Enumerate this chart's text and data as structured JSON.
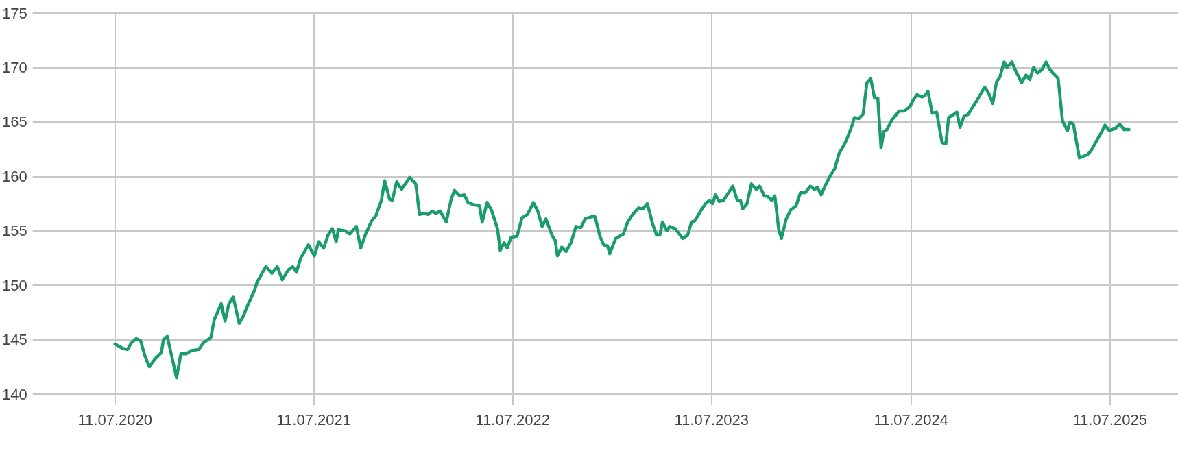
{
  "chart_data": {
    "type": "line",
    "x": [
      "2020-07-11",
      "2020-07-25",
      "2020-08-03",
      "2020-08-10",
      "2020-08-19",
      "2020-08-27",
      "2020-09-04",
      "2020-09-12",
      "2020-09-22",
      "2020-10-04",
      "2020-10-08",
      "2020-10-15",
      "2020-11-01",
      "2020-11-09",
      "2020-11-19",
      "2020-11-28",
      "2020-12-12",
      "2020-12-20",
      "2021-01-03",
      "2021-01-09",
      "2021-01-22",
      "2021-01-29",
      "2021-02-05",
      "2021-02-13",
      "2021-02-24",
      "2021-03-03",
      "2021-03-12",
      "2021-03-23",
      "2021-03-29",
      "2021-04-07",
      "2021-04-14",
      "2021-04-25",
      "2021-05-05",
      "2021-05-14",
      "2021-05-25",
      "2021-06-02",
      "2021-06-09",
      "2021-06-17",
      "2021-07-01",
      "2021-07-12",
      "2021-07-20",
      "2021-07-29",
      "2021-08-06",
      "2021-08-14",
      "2021-08-21",
      "2021-08-25",
      "2021-09-06",
      "2021-09-15",
      "2021-09-27",
      "2021-10-05",
      "2021-10-14",
      "2021-10-25",
      "2021-11-02",
      "2021-11-12",
      "2021-11-18",
      "2021-11-27",
      "2021-12-02",
      "2021-12-10",
      "2021-12-19",
      "2022-01-03",
      "2022-01-14",
      "2022-01-21",
      "2022-01-29",
      "2022-02-06",
      "2022-02-13",
      "2022-02-20",
      "2022-02-28",
      "2022-03-11",
      "2022-03-20",
      "2022-03-26",
      "2022-04-05",
      "2022-04-13",
      "2022-04-20",
      "2022-04-30",
      "2022-05-11",
      "2022-05-16",
      "2022-05-25",
      "2022-06-02",
      "2022-06-13",
      "2022-06-18",
      "2022-06-25",
      "2022-07-01",
      "2022-07-08",
      "2022-07-19",
      "2022-07-28",
      "2022-08-07",
      "2022-08-18",
      "2022-08-26",
      "2022-09-03",
      "2022-09-10",
      "2022-09-21",
      "2022-09-27",
      "2022-10-01",
      "2022-10-09",
      "2022-10-17",
      "2022-10-26",
      "2022-11-04",
      "2022-11-13",
      "2022-11-21",
      "2022-12-03",
      "2022-12-09",
      "2022-12-18",
      "2022-12-25",
      "2023-01-01",
      "2023-01-05",
      "2023-01-16",
      "2023-01-30",
      "2023-02-07",
      "2023-02-16",
      "2023-02-27",
      "2023-03-07",
      "2023-03-15",
      "2023-03-25",
      "2023-04-01",
      "2023-04-07",
      "2023-04-12",
      "2023-04-20",
      "2023-04-25",
      "2023-05-05",
      "2023-05-19",
      "2023-05-28",
      "2023-06-04",
      "2023-06-10",
      "2023-06-22",
      "2023-06-30",
      "2023-07-07",
      "2023-07-13",
      "2023-07-18",
      "2023-07-25",
      "2023-08-02",
      "2023-08-11",
      "2023-08-19",
      "2023-08-27",
      "2023-09-02",
      "2023-09-06",
      "2023-09-14",
      "2023-09-22",
      "2023-10-01",
      "2023-10-07",
      "2023-10-16",
      "2023-10-21",
      "2023-10-29",
      "2023-11-04",
      "2023-11-11",
      "2023-11-16",
      "2023-11-25",
      "2023-12-03",
      "2023-12-13",
      "2023-12-21",
      "2023-12-30",
      "2024-01-08",
      "2024-01-16",
      "2024-01-21",
      "2024-01-28",
      "2024-02-06",
      "2024-02-12",
      "2024-02-22",
      "2024-03-01",
      "2024-03-08",
      "2024-03-15",
      "2024-03-25",
      "2024-03-29",
      "2024-04-06",
      "2024-04-14",
      "2024-04-21",
      "2024-04-28",
      "2024-05-05",
      "2024-05-11",
      "2024-05-17",
      "2024-05-22",
      "2024-05-28",
      "2024-06-06",
      "2024-06-13",
      "2024-06-19",
      "2024-06-29",
      "2024-07-09",
      "2024-07-16",
      "2024-07-22",
      "2024-07-31",
      "2024-08-05",
      "2024-08-11",
      "2024-08-19",
      "2024-08-27",
      "2024-09-06",
      "2024-09-13",
      "2024-09-18",
      "2024-09-25",
      "2024-10-03",
      "2024-10-09",
      "2024-10-16",
      "2024-10-24",
      "2024-10-30",
      "2024-11-07",
      "2024-11-14",
      "2024-11-23",
      "2024-11-30",
      "2024-12-08",
      "2024-12-15",
      "2024-12-21",
      "2024-12-29",
      "2025-01-03",
      "2025-01-12",
      "2025-01-20",
      "2025-01-30",
      "2025-02-07",
      "2025-02-14",
      "2025-02-21",
      "2025-02-28",
      "2025-03-08",
      "2025-03-16",
      "2025-03-23",
      "2025-03-30",
      "2025-04-07",
      "2025-04-15",
      "2025-04-24",
      "2025-04-29",
      "2025-05-05",
      "2025-05-16",
      "2025-05-31",
      "2025-06-07",
      "2025-06-18",
      "2025-06-25",
      "2025-07-02",
      "2025-07-10",
      "2025-07-21",
      "2025-07-29",
      "2025-08-06",
      "2025-08-15"
    ],
    "series": [
      {
        "color": "#1a9c6b",
        "values": [
          144.6,
          144.2,
          144.1,
          144.7,
          145.1,
          144.9,
          143.5,
          142.5,
          143.2,
          143.8,
          145.0,
          145.3,
          141.5,
          143.7,
          143.7,
          144.0,
          144.1,
          144.7,
          145.2,
          146.8,
          148.3,
          146.7,
          148.3,
          148.9,
          146.5,
          147.1,
          148.2,
          149.4,
          150.3,
          151.1,
          151.7,
          151.1,
          151.7,
          150.5,
          151.4,
          151.7,
          151.2,
          152.5,
          153.7,
          152.7,
          154.0,
          153.4,
          154.6,
          155.2,
          154.0,
          155.1,
          155.0,
          154.7,
          155.4,
          153.4,
          154.7,
          155.9,
          156.4,
          157.8,
          159.6,
          157.9,
          157.8,
          159.5,
          158.8,
          159.9,
          159.3,
          156.5,
          156.6,
          156.5,
          156.8,
          156.6,
          156.8,
          155.8,
          157.9,
          158.7,
          158.2,
          158.3,
          157.6,
          157.4,
          157.3,
          155.8,
          157.6,
          156.9,
          155.2,
          153.2,
          153.9,
          153.4,
          154.4,
          154.5,
          156.2,
          156.5,
          157.6,
          156.8,
          155.4,
          156.1,
          154.6,
          154.1,
          152.7,
          153.5,
          153.1,
          153.9,
          155.4,
          155.3,
          156.1,
          156.3,
          156.3,
          154.5,
          153.7,
          153.6,
          152.9,
          154.3,
          154.7,
          155.8,
          156.5,
          157.1,
          157.0,
          157.5,
          155.6,
          154.6,
          154.6,
          155.8,
          155.0,
          155.4,
          155.2,
          154.3,
          154.6,
          155.8,
          155.9,
          156.9,
          157.5,
          157.8,
          157.5,
          158.3,
          157.7,
          157.8,
          158.5,
          159.1,
          157.8,
          157.8,
          157.0,
          157.5,
          159.3,
          158.8,
          159.1,
          158.2,
          158.2,
          157.8,
          158.2,
          155.2,
          154.3,
          156.1,
          156.9,
          157.3,
          158.5,
          158.5,
          159.1,
          158.8,
          159.0,
          158.3,
          159.3,
          159.9,
          160.7,
          162.1,
          162.7,
          163.4,
          164.7,
          165.4,
          165.3,
          165.7,
          168.6,
          169.0,
          167.2,
          167.2,
          162.6,
          164.1,
          164.3,
          165.2,
          165.6,
          166.0,
          166.0,
          166.4,
          167.1,
          167.5,
          167.3,
          167.4,
          167.8,
          165.8,
          165.9,
          163.1,
          163.0,
          165.4,
          165.6,
          165.9,
          164.5,
          165.5,
          165.7,
          166.2,
          166.8,
          167.4,
          168.2,
          167.7,
          166.7,
          168.7,
          169.1,
          170.5,
          170.0,
          170.5,
          169.6,
          168.6,
          169.3,
          168.9,
          170.0,
          169.5,
          169.8,
          170.5,
          169.8,
          169.4,
          169.0,
          165.1,
          164.2,
          165.0,
          164.8,
          161.7,
          162.0,
          162.4,
          163.4,
          164.0,
          164.7,
          164.2,
          164.4,
          164.8,
          164.3,
          164.3
        ]
      }
    ],
    "xlim": [
      "2020-02-11",
      "2025-11-13"
    ],
    "xticks": [
      {
        "value": "2020-07-11",
        "label": "11.07.2020"
      },
      {
        "value": "2021-07-11",
        "label": "11.07.2021"
      },
      {
        "value": "2022-07-11",
        "label": "11.07.2022"
      },
      {
        "value": "2023-07-11",
        "label": "11.07.2023"
      },
      {
        "value": "2024-07-11",
        "label": "11.07.2024"
      },
      {
        "value": "2025-07-11",
        "label": "11.07.2025"
      }
    ],
    "ylim": [
      140,
      175
    ],
    "yticks": [
      140,
      145,
      150,
      155,
      160,
      165,
      170,
      175
    ],
    "grid": true,
    "marker": "none",
    "line_style": "solid"
  }
}
